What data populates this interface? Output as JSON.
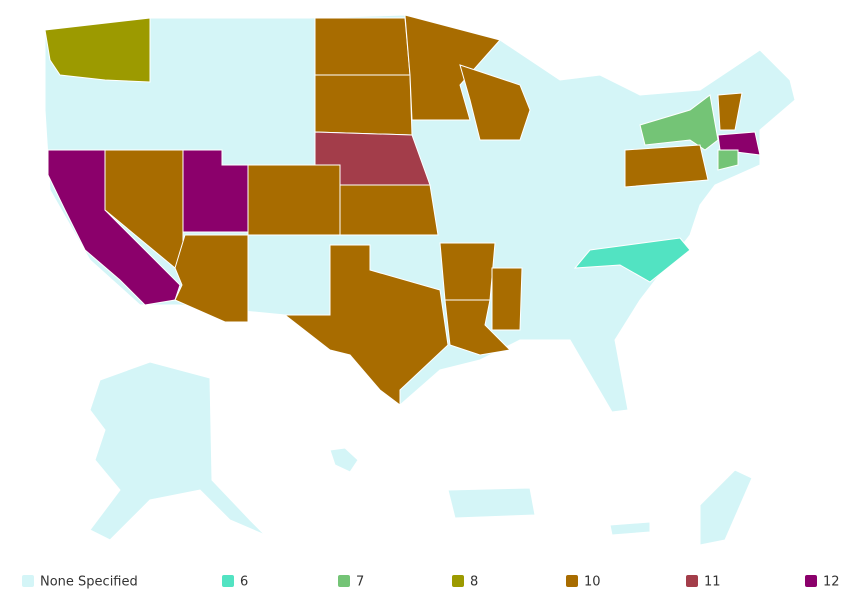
{
  "legend": [
    {
      "label": "None Specified",
      "color": "#d4f5f7"
    },
    {
      "value": 6,
      "color": "#52e3c2"
    },
    {
      "value": 7,
      "color": "#74c476"
    },
    {
      "value": 8,
      "color": "#9c9a00"
    },
    {
      "value": 10,
      "color": "#a86c00"
    },
    {
      "value": 11,
      "color": "#a33d4a"
    },
    {
      "value": 12,
      "color": "#8b006b"
    }
  ],
  "regions": [
    {
      "value": 8
    },
    {
      "value": 12
    },
    {
      "value": 10
    },
    {
      "value": 12
    },
    {
      "value": 10
    },
    {
      "value": 10
    },
    {
      "value": 10
    },
    {
      "value": 10
    },
    {
      "value": 11
    },
    {
      "value": 10
    },
    {
      "value": 10
    },
    {
      "value": 10
    },
    {
      "value": 10
    },
    {
      "value": 10
    },
    {
      "value": 10
    },
    {
      "value": 10
    },
    {
      "value": 6
    },
    {
      "value": 7
    },
    {
      "value": 10
    },
    {
      "value": 12
    },
    {
      "value": 7
    },
    {
      "value": 10
    }
  ]
}
